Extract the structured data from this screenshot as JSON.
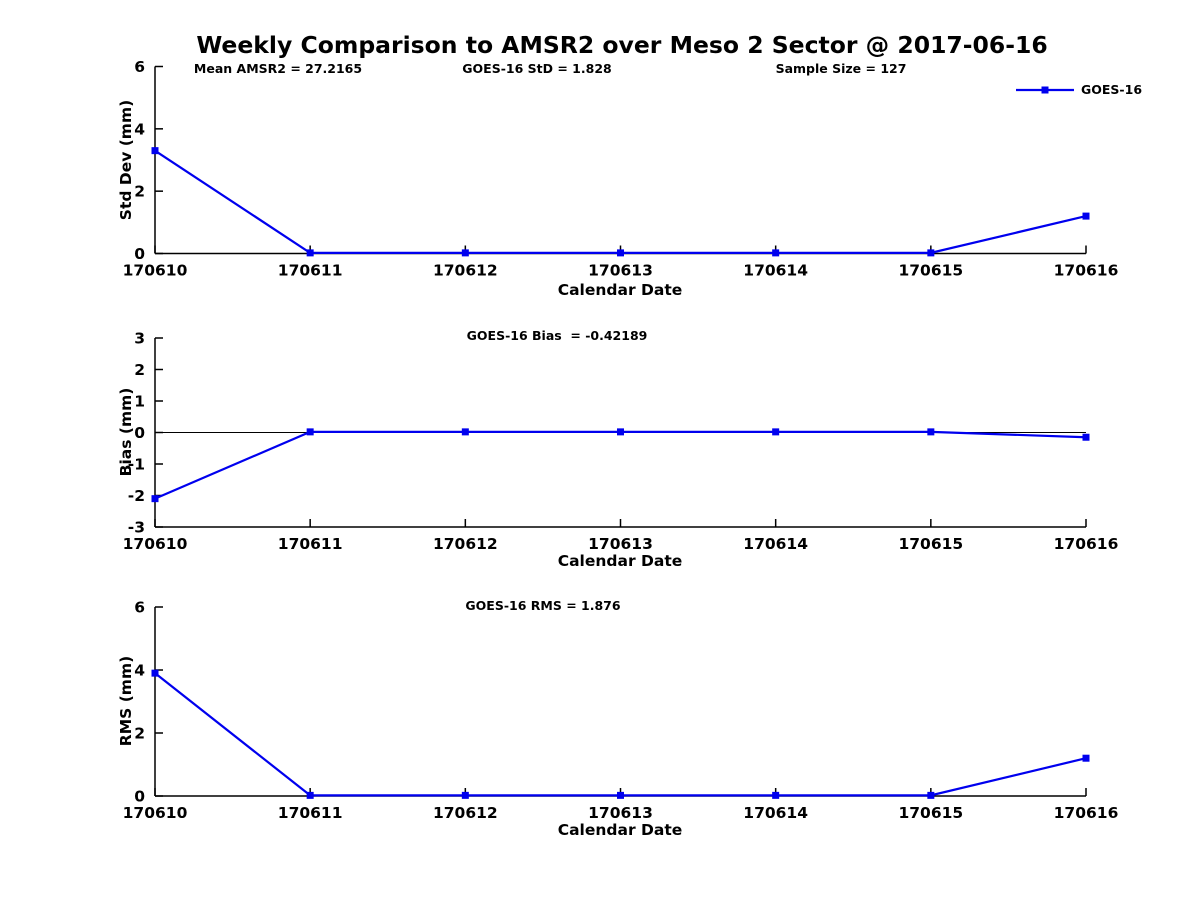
{
  "figure": {
    "title": "Weekly Comparison to AMSR2 over Meso 2 Sector @ 2017-06-16",
    "background": "#ffffff",
    "line_color": "#0000ee",
    "axis_color": "#000000"
  },
  "legend": {
    "label": "GOES-16"
  },
  "stats": {
    "mean_amsr2": 27.2165,
    "goes16_std": 1.828,
    "sample_size": 127,
    "goes16_bias": -0.42189,
    "goes16_rms": 1.876
  },
  "chart_data": [
    {
      "type": "line",
      "name": "std-dev",
      "title": "",
      "annotations": [
        "Mean AMSR2 = 27.2165",
        "GOES-16 StD = 1.828",
        "Sample Size = 127"
      ],
      "xlabel": "Calendar Date",
      "ylabel": "Std Dev (mm)",
      "categories": [
        "170610",
        "170611",
        "170612",
        "170613",
        "170614",
        "170615",
        "170616"
      ],
      "series": [
        {
          "name": "GOES-16",
          "values": [
            3.3,
            0.02,
            0.02,
            0.02,
            0.02,
            0.02,
            1.2
          ]
        }
      ],
      "ylim": [
        0,
        6
      ],
      "yticks": [
        0,
        2,
        4,
        6
      ],
      "grid": false,
      "zero_line": false,
      "legend_position": "top-right"
    },
    {
      "type": "line",
      "name": "bias",
      "title": "",
      "annotations": [
        "GOES-16 Bias  = -0.42189"
      ],
      "xlabel": "Calendar Date",
      "ylabel": "Bias (mm)",
      "categories": [
        "170610",
        "170611",
        "170612",
        "170613",
        "170614",
        "170615",
        "170616"
      ],
      "series": [
        {
          "name": "GOES-16",
          "values": [
            -2.1,
            0.02,
            0.02,
            0.02,
            0.02,
            0.02,
            -0.15
          ]
        }
      ],
      "ylim": [
        -3,
        3
      ],
      "yticks": [
        3,
        2,
        1,
        0,
        -1,
        -2,
        -3
      ],
      "grid": false,
      "zero_line": true,
      "legend_position": "none"
    },
    {
      "type": "line",
      "name": "rms",
      "title": "",
      "annotations": [
        "GOES-16 RMS = 1.876"
      ],
      "xlabel": "Calendar Date",
      "ylabel": "RMS (mm)",
      "categories": [
        "170610",
        "170611",
        "170612",
        "170613",
        "170614",
        "170615",
        "170616"
      ],
      "series": [
        {
          "name": "GOES-16",
          "values": [
            3.9,
            0.02,
            0.02,
            0.02,
            0.02,
            0.02,
            1.2
          ]
        }
      ],
      "ylim": [
        0,
        6
      ],
      "yticks": [
        0,
        2,
        4,
        6
      ],
      "grid": false,
      "zero_line": false,
      "legend_position": "none"
    }
  ]
}
